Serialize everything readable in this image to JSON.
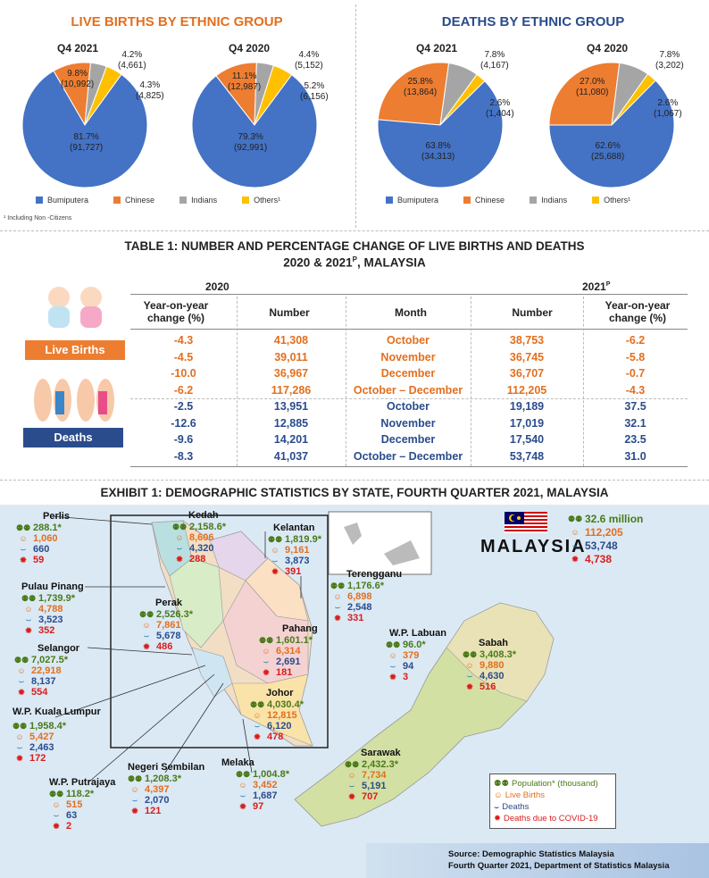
{
  "births_section": {
    "title": "LIVE BIRTHS  BY ETHNIC GROUP",
    "footnote": "¹ Including Non -Citizens",
    "legend": [
      "Bumiputera",
      "Chinese",
      "Indians",
      "Others¹"
    ]
  },
  "deaths_section": {
    "title": "DEATHS BY ETHNIC GROUP",
    "legend": [
      "Bumiputera",
      "Chinese",
      "Indians",
      "Others¹"
    ]
  },
  "colors": {
    "bumiputera": "#4472c4",
    "chinese": "#ed7d31",
    "indians": "#a5a5a5",
    "others": "#ffc000",
    "orange": "#e36f1e",
    "navy": "#2a4c8c"
  },
  "chart_data": [
    {
      "type": "pie",
      "title": "Q4 2021",
      "group": "Live births",
      "categories": [
        "Bumiputera",
        "Chinese",
        "Indians",
        "Others¹"
      ],
      "percent": [
        81.7,
        9.8,
        4.2,
        4.3
      ],
      "values": [
        91727,
        10992,
        4661,
        4825
      ],
      "labels": [
        [
          "81.7%",
          "(91,727)"
        ],
        [
          "9.8%",
          "(10,992)"
        ],
        [
          "4.2%",
          "(4,661)"
        ],
        [
          "4.3%",
          "(4,825)"
        ]
      ]
    },
    {
      "type": "pie",
      "title": "Q4 2020",
      "group": "Live births",
      "categories": [
        "Bumiputera",
        "Chinese",
        "Indians",
        "Others¹"
      ],
      "percent": [
        79.3,
        11.1,
        4.4,
        5.2
      ],
      "values": [
        92991,
        12987,
        5152,
        6156
      ],
      "labels": [
        [
          "79.3%",
          "(92,991)"
        ],
        [
          "11.1%",
          "(12,987)"
        ],
        [
          "4.4%",
          "(5,152)"
        ],
        [
          "5.2%",
          "(6,156)"
        ]
      ]
    },
    {
      "type": "pie",
      "title": "Q4 2021",
      "group": "Deaths",
      "categories": [
        "Bumiputera",
        "Chinese",
        "Indians",
        "Others¹"
      ],
      "percent": [
        63.8,
        25.8,
        7.8,
        2.6
      ],
      "values": [
        34313,
        13864,
        4167,
        1404
      ],
      "labels": [
        [
          "63.8%",
          "(34,313)"
        ],
        [
          "25.8%",
          "(13,864)"
        ],
        [
          "7.8%",
          "(4,167)"
        ],
        [
          "2.6%",
          "(1,404)"
        ]
      ]
    },
    {
      "type": "pie",
      "title": "Q4 2020",
      "group": "Deaths",
      "categories": [
        "Bumiputera",
        "Chinese",
        "Indians",
        "Others¹"
      ],
      "percent": [
        62.6,
        27.0,
        7.8,
        2.6
      ],
      "values": [
        25688,
        11080,
        3202,
        1067
      ],
      "labels": [
        [
          "62.6%",
          "(25,688)"
        ],
        [
          "27.0%",
          "(11,080)"
        ],
        [
          "7.8%",
          "(3,202)"
        ],
        [
          "2.6%",
          "(1,067)"
        ]
      ]
    },
    {
      "type": "table",
      "title_line1": "TABLE 1: NUMBER AND PERCENTAGE CHANGE OF LIVE BIRTHS AND DEATHS",
      "title_line2_pre": "2020 & 2021",
      "title_line2_sup": "P",
      "title_line2_post": ", MALAYSIA",
      "year_left": "2020",
      "year_right": "2021",
      "year_right_sup": "P",
      "headers": [
        "Year-on-year change (%)",
        "Number",
        "Month",
        "Number",
        "Year-on-year change (%)"
      ],
      "live_births_label": "Live Births",
      "deaths_label": "Deaths",
      "live_births": [
        [
          "-4.3",
          "41,308",
          "October",
          "38,753",
          "-6.2"
        ],
        [
          "-4.5",
          "39,011",
          "November",
          "36,745",
          "-5.8"
        ],
        [
          "-10.0",
          "36,967",
          "December",
          "36,707",
          "-0.7"
        ],
        [
          "-6.2",
          "117,286",
          "October – December",
          "112,205",
          "-4.3"
        ]
      ],
      "deaths": [
        [
          "-2.5",
          "13,951",
          "October",
          "19,189",
          "37.5"
        ],
        [
          "-12.6",
          "12,885",
          "November",
          "17,019",
          "32.1"
        ],
        [
          "-9.6",
          "14,201",
          "December",
          "17,540",
          "23.5"
        ],
        [
          "-8.3",
          "41,037",
          "October – December",
          "53,748",
          "31.0"
        ]
      ]
    }
  ],
  "exhibit": {
    "title": "EXHIBIT 1: DEMOGRAPHIC  STATISTICS  BY STATE, FOURTH QUARTER 2021, MALAYSIA",
    "country": "MALAYSIA",
    "national": {
      "population": "32.6 million",
      "births": "112,205",
      "deaths": "53,748",
      "covid": "4,738"
    },
    "states": [
      {
        "name": "Perlis",
        "pop": "288.1*",
        "births": "1,060",
        "deaths": "660",
        "covid": "59"
      },
      {
        "name": "Kedah",
        "pop": "2,158.6*",
        "births": "8,606",
        "deaths": "4,320",
        "covid": "288"
      },
      {
        "name": "Kelantan",
        "pop": "1,819.9*",
        "births": "9,161",
        "deaths": "3,873",
        "covid": "391"
      },
      {
        "name": "Pulau Pinang",
        "pop": "1,739.9*",
        "births": "4,788",
        "deaths": "3,523",
        "covid": "352"
      },
      {
        "name": "Perak",
        "pop": "2,526.3*",
        "births": "7,861",
        "deaths": "5,678",
        "covid": "486"
      },
      {
        "name": "Terengganu",
        "pop": "1,176.6*",
        "births": "6,898",
        "deaths": "2,548",
        "covid": "331"
      },
      {
        "name": "Pahang",
        "pop": "1,601.1*",
        "births": "6,314",
        "deaths": "2,691",
        "covid": "181"
      },
      {
        "name": "Selangor",
        "pop": "7,027.5*",
        "births": "22,918",
        "deaths": "8,137",
        "covid": "554"
      },
      {
        "name": "W.P. Labuan",
        "pop": "96.0*",
        "births": "379",
        "deaths": "94",
        "covid": "3"
      },
      {
        "name": "Sabah",
        "pop": "3,408.3*",
        "births": "9,880",
        "deaths": "4,630",
        "covid": "516"
      },
      {
        "name": "Johor",
        "pop": "4,030.4*",
        "births": "12,815",
        "deaths": "6,120",
        "covid": "478"
      },
      {
        "name": "W.P. Kuala Lumpur",
        "pop": "1,958.4*",
        "births": "5,427",
        "deaths": "2,463",
        "covid": "172"
      },
      {
        "name": "W.P. Putrajaya",
        "pop": "118.2*",
        "births": "515",
        "deaths": "63",
        "covid": "2"
      },
      {
        "name": "Negeri Sembilan",
        "pop": "1,208.3*",
        "births": "4,397",
        "deaths": "2,070",
        "covid": "121"
      },
      {
        "name": "Melaka",
        "pop": "1,004.8*",
        "births": "3,452",
        "deaths": "1,687",
        "covid": "97"
      },
      {
        "name": "Sarawak",
        "pop": "2,432.3*",
        "births": "7,734",
        "deaths": "5,191",
        "covid": "707"
      }
    ],
    "legend": {
      "pop": "Population* (thousand)",
      "births": "Live Births",
      "deaths": "Deaths",
      "covid": "Deaths due to COVID-19"
    },
    "source_line1": "Source: Demographic  Statistics Malaysia",
    "source_line2": "Fourth Quarter 2021, Department  of Statistics Malaysia"
  }
}
